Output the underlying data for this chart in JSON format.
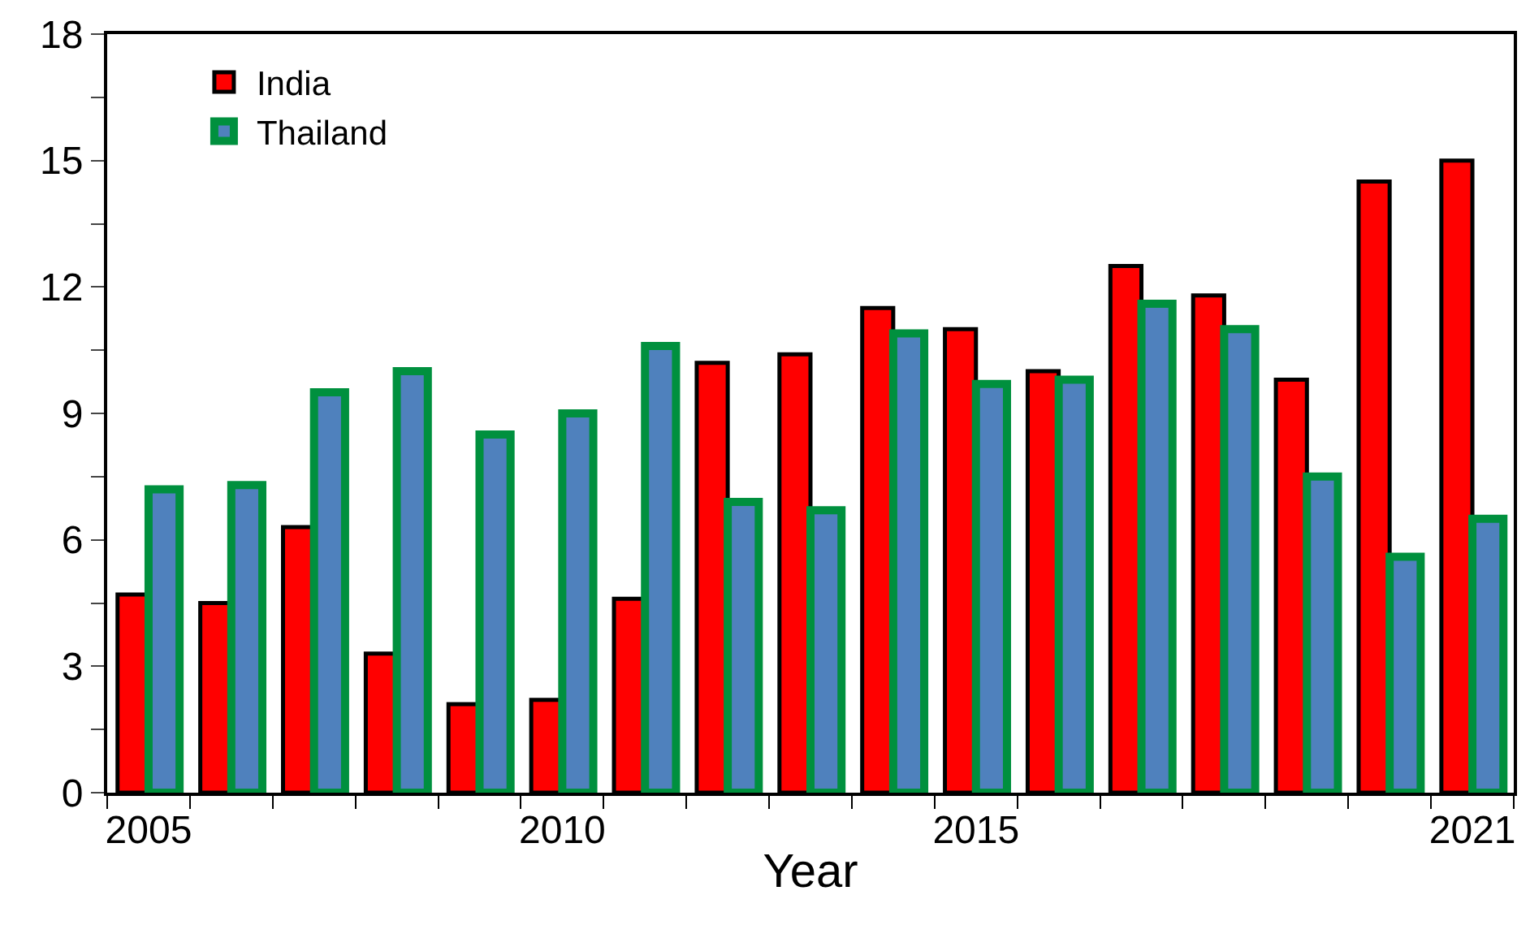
{
  "chart_data": {
    "type": "bar",
    "xlabel": "Year",
    "categories": [
      "2005",
      null,
      null,
      null,
      null,
      "2010",
      null,
      null,
      null,
      null,
      "2015",
      null,
      null,
      null,
      null,
      null,
      "2021"
    ],
    "series": [
      {
        "name": "India",
        "color": "#ff0000",
        "values": [
          4.7,
          4.5,
          6.3,
          3.3,
          2.1,
          2.2,
          4.6,
          10.2,
          10.4,
          11.5,
          11.0,
          10.0,
          12.5,
          11.8,
          9.8,
          14.5,
          15.0
        ]
      },
      {
        "name": "Thailand",
        "color": "#00903e",
        "values": [
          7.2,
          7.3,
          9.5,
          10.0,
          8.5,
          9.0,
          10.6,
          6.9,
          6.7,
          10.9,
          9.7,
          9.8,
          11.6,
          11.0,
          7.5,
          5.6,
          6.5
        ]
      }
    ],
    "ylim": [
      0,
      18
    ],
    "yticks": [
      0,
      {
        "value": 1.5,
        "label": null
      },
      3,
      {
        "value": 4.5,
        "label": null
      },
      6,
      {
        "value": 7.5,
        "label": null
      },
      9,
      {
        "value": 10.5,
        "label": null
      },
      12,
      {
        "value": 13.5,
        "label": null
      },
      15,
      {
        "value": 16.5,
        "label": null
      },
      18
    ],
    "legend": "top left"
  }
}
